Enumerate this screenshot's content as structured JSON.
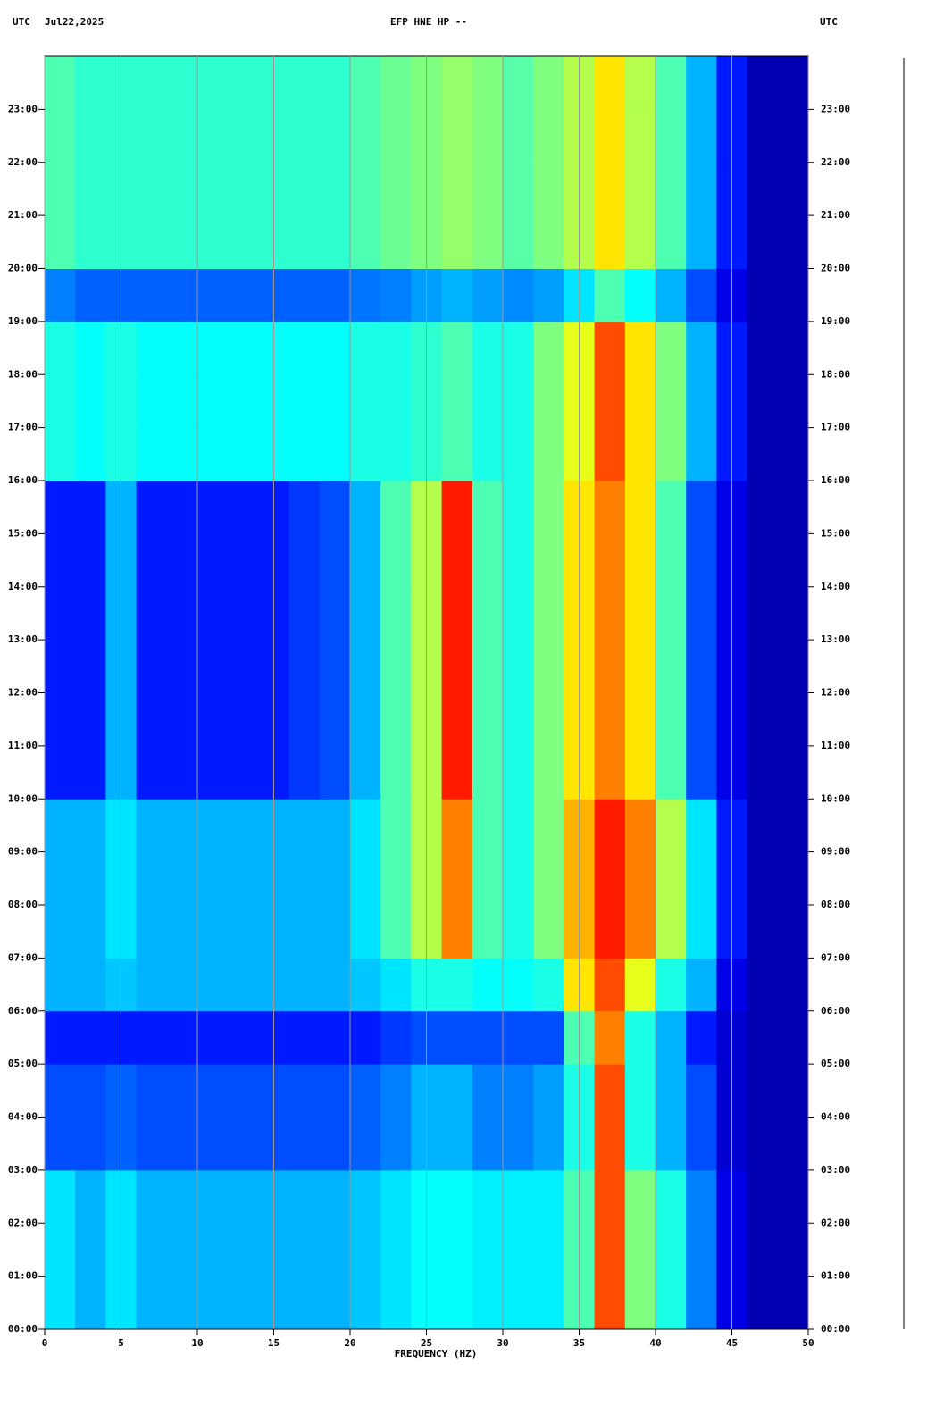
{
  "chart_data": {
    "type": "spectrogram",
    "title": "EFP HNE HP --",
    "left_label": "UTC",
    "date": "Jul22,2025",
    "right_label": "UTC",
    "x_label": "FREQUENCY (HZ)",
    "colormap": "jet",
    "xlim": [
      0,
      50
    ],
    "xticks": [
      0,
      5,
      10,
      15,
      20,
      25,
      30,
      35,
      40,
      45,
      50
    ],
    "grid": true,
    "ylim": [
      0,
      24
    ],
    "yticks": [
      {
        "value": 0,
        "label": "00:00"
      },
      {
        "value": 1,
        "label": "01:00"
      },
      {
        "value": 2,
        "label": "02:00"
      },
      {
        "value": 3,
        "label": "03:00"
      },
      {
        "value": 4,
        "label": "04:00"
      },
      {
        "value": 5,
        "label": "05:00"
      },
      {
        "value": 6,
        "label": "06:00"
      },
      {
        "value": 7,
        "label": "07:00"
      },
      {
        "value": 8,
        "label": "08:00"
      },
      {
        "value": 9,
        "label": "09:00"
      },
      {
        "value": 10,
        "label": "10:00"
      },
      {
        "value": 11,
        "label": "11:00"
      },
      {
        "value": 12,
        "label": "12:00"
      },
      {
        "value": 13,
        "label": "13:00"
      },
      {
        "value": 14,
        "label": "14:00"
      },
      {
        "value": 15,
        "label": "15:00"
      },
      {
        "value": 16,
        "label": "16:00"
      },
      {
        "value": 17,
        "label": "17:00"
      },
      {
        "value": 18,
        "label": "18:00"
      },
      {
        "value": 19,
        "label": "19:00"
      },
      {
        "value": 20,
        "label": "20:00"
      },
      {
        "value": 21,
        "label": "21:00"
      },
      {
        "value": 22,
        "label": "22:00"
      },
      {
        "value": 23,
        "label": "23:00"
      }
    ],
    "xbins": [
      0,
      2,
      4,
      6,
      8,
      10,
      12,
      14,
      16,
      18,
      20,
      22,
      24,
      26,
      28,
      30,
      32,
      34,
      36,
      38,
      40,
      42,
      44,
      46,
      48,
      50
    ],
    "ybins": [
      0,
      1,
      2,
      3,
      4,
      5,
      6,
      7,
      8,
      9,
      10,
      11,
      12,
      13,
      14,
      15,
      16,
      17,
      18,
      19,
      20,
      21,
      22,
      23,
      24
    ],
    "z": [
      [
        0.35,
        0.3,
        0.35,
        0.3,
        0.3,
        0.3,
        0.3,
        0.3,
        0.3,
        0.3,
        0.32,
        0.35,
        0.38,
        0.38,
        0.36,
        0.36,
        0.36,
        0.45,
        0.8,
        0.5,
        0.4,
        0.25,
        0.1,
        0.05,
        0.05
      ],
      [
        0.35,
        0.3,
        0.35,
        0.3,
        0.3,
        0.3,
        0.3,
        0.3,
        0.3,
        0.3,
        0.32,
        0.35,
        0.38,
        0.38,
        0.36,
        0.36,
        0.36,
        0.45,
        0.8,
        0.5,
        0.4,
        0.25,
        0.1,
        0.05,
        0.05
      ],
      [
        0.35,
        0.3,
        0.35,
        0.3,
        0.3,
        0.3,
        0.3,
        0.3,
        0.3,
        0.3,
        0.32,
        0.35,
        0.38,
        0.38,
        0.36,
        0.36,
        0.36,
        0.45,
        0.8,
        0.5,
        0.4,
        0.25,
        0.1,
        0.05,
        0.05
      ],
      [
        0.2,
        0.2,
        0.22,
        0.2,
        0.2,
        0.2,
        0.2,
        0.2,
        0.2,
        0.2,
        0.22,
        0.25,
        0.3,
        0.3,
        0.25,
        0.25,
        0.28,
        0.4,
        0.8,
        0.4,
        0.3,
        0.2,
        0.08,
        0.05,
        0.05
      ],
      [
        0.2,
        0.2,
        0.22,
        0.2,
        0.2,
        0.2,
        0.2,
        0.2,
        0.2,
        0.2,
        0.22,
        0.25,
        0.3,
        0.3,
        0.25,
        0.25,
        0.28,
        0.4,
        0.8,
        0.4,
        0.3,
        0.2,
        0.08,
        0.05,
        0.05
      ],
      [
        0.15,
        0.15,
        0.15,
        0.15,
        0.15,
        0.15,
        0.15,
        0.15,
        0.15,
        0.15,
        0.15,
        0.18,
        0.2,
        0.2,
        0.2,
        0.2,
        0.2,
        0.45,
        0.75,
        0.4,
        0.3,
        0.15,
        0.08,
        0.05,
        0.05
      ],
      [
        0.3,
        0.3,
        0.32,
        0.3,
        0.3,
        0.3,
        0.3,
        0.3,
        0.3,
        0.3,
        0.32,
        0.35,
        0.4,
        0.4,
        0.38,
        0.38,
        0.4,
        0.65,
        0.8,
        0.6,
        0.4,
        0.3,
        0.1,
        0.05,
        0.05
      ],
      [
        0.3,
        0.3,
        0.35,
        0.3,
        0.3,
        0.3,
        0.3,
        0.3,
        0.3,
        0.3,
        0.35,
        0.45,
        0.55,
        0.75,
        0.45,
        0.4,
        0.5,
        0.7,
        0.85,
        0.75,
        0.55,
        0.35,
        0.15,
        0.05,
        0.05
      ],
      [
        0.3,
        0.3,
        0.35,
        0.3,
        0.3,
        0.3,
        0.3,
        0.3,
        0.3,
        0.3,
        0.35,
        0.45,
        0.55,
        0.75,
        0.45,
        0.4,
        0.5,
        0.7,
        0.85,
        0.75,
        0.55,
        0.35,
        0.15,
        0.05,
        0.05
      ],
      [
        0.3,
        0.3,
        0.35,
        0.3,
        0.3,
        0.3,
        0.3,
        0.3,
        0.3,
        0.3,
        0.35,
        0.45,
        0.55,
        0.75,
        0.45,
        0.4,
        0.5,
        0.7,
        0.85,
        0.75,
        0.55,
        0.35,
        0.15,
        0.05,
        0.05
      ],
      [
        0.15,
        0.15,
        0.3,
        0.15,
        0.15,
        0.15,
        0.15,
        0.15,
        0.18,
        0.2,
        0.3,
        0.45,
        0.55,
        0.85,
        0.45,
        0.4,
        0.5,
        0.65,
        0.75,
        0.65,
        0.45,
        0.2,
        0.1,
        0.05,
        0.05
      ],
      [
        0.15,
        0.15,
        0.3,
        0.15,
        0.15,
        0.15,
        0.15,
        0.15,
        0.18,
        0.2,
        0.3,
        0.45,
        0.55,
        0.85,
        0.45,
        0.4,
        0.5,
        0.65,
        0.75,
        0.65,
        0.45,
        0.2,
        0.1,
        0.05,
        0.05
      ],
      [
        0.15,
        0.15,
        0.3,
        0.15,
        0.15,
        0.15,
        0.15,
        0.15,
        0.18,
        0.2,
        0.3,
        0.45,
        0.55,
        0.85,
        0.45,
        0.4,
        0.5,
        0.65,
        0.75,
        0.65,
        0.45,
        0.2,
        0.1,
        0.05,
        0.05
      ],
      [
        0.15,
        0.15,
        0.3,
        0.15,
        0.15,
        0.15,
        0.15,
        0.15,
        0.18,
        0.2,
        0.3,
        0.45,
        0.55,
        0.85,
        0.45,
        0.4,
        0.5,
        0.65,
        0.75,
        0.65,
        0.45,
        0.2,
        0.1,
        0.05,
        0.05
      ],
      [
        0.15,
        0.15,
        0.3,
        0.15,
        0.15,
        0.15,
        0.15,
        0.15,
        0.18,
        0.2,
        0.3,
        0.45,
        0.55,
        0.85,
        0.45,
        0.4,
        0.5,
        0.65,
        0.75,
        0.65,
        0.45,
        0.2,
        0.1,
        0.05,
        0.05
      ],
      [
        0.15,
        0.15,
        0.3,
        0.15,
        0.15,
        0.15,
        0.15,
        0.15,
        0.18,
        0.2,
        0.3,
        0.45,
        0.55,
        0.85,
        0.45,
        0.4,
        0.5,
        0.65,
        0.75,
        0.65,
        0.45,
        0.2,
        0.1,
        0.05,
        0.05
      ],
      [
        0.4,
        0.38,
        0.4,
        0.38,
        0.38,
        0.38,
        0.38,
        0.38,
        0.38,
        0.38,
        0.4,
        0.4,
        0.42,
        0.45,
        0.4,
        0.4,
        0.5,
        0.6,
        0.8,
        0.65,
        0.5,
        0.3,
        0.15,
        0.05,
        0.05
      ],
      [
        0.4,
        0.38,
        0.4,
        0.38,
        0.38,
        0.38,
        0.38,
        0.38,
        0.38,
        0.38,
        0.4,
        0.4,
        0.42,
        0.45,
        0.4,
        0.4,
        0.5,
        0.6,
        0.8,
        0.65,
        0.5,
        0.3,
        0.15,
        0.05,
        0.05
      ],
      [
        0.4,
        0.38,
        0.4,
        0.38,
        0.38,
        0.38,
        0.38,
        0.38,
        0.38,
        0.38,
        0.4,
        0.4,
        0.42,
        0.45,
        0.4,
        0.4,
        0.5,
        0.6,
        0.8,
        0.65,
        0.5,
        0.3,
        0.15,
        0.05,
        0.05
      ],
      [
        0.25,
        0.22,
        0.22,
        0.22,
        0.22,
        0.22,
        0.22,
        0.22,
        0.22,
        0.22,
        0.24,
        0.25,
        0.28,
        0.3,
        0.28,
        0.26,
        0.28,
        0.35,
        0.45,
        0.38,
        0.3,
        0.2,
        0.1,
        0.05,
        0.05
      ],
      [
        0.45,
        0.42,
        0.42,
        0.42,
        0.42,
        0.42,
        0.42,
        0.42,
        0.42,
        0.42,
        0.45,
        0.48,
        0.5,
        0.52,
        0.5,
        0.46,
        0.5,
        0.55,
        0.65,
        0.55,
        0.45,
        0.3,
        0.15,
        0.05,
        0.05
      ],
      [
        0.45,
        0.42,
        0.42,
        0.42,
        0.42,
        0.42,
        0.42,
        0.42,
        0.42,
        0.42,
        0.45,
        0.48,
        0.5,
        0.52,
        0.5,
        0.46,
        0.5,
        0.55,
        0.65,
        0.55,
        0.45,
        0.3,
        0.15,
        0.05,
        0.05
      ],
      [
        0.45,
        0.42,
        0.42,
        0.42,
        0.42,
        0.42,
        0.42,
        0.42,
        0.42,
        0.42,
        0.45,
        0.48,
        0.5,
        0.52,
        0.5,
        0.46,
        0.5,
        0.55,
        0.65,
        0.55,
        0.45,
        0.3,
        0.15,
        0.05,
        0.05
      ],
      [
        0.45,
        0.42,
        0.42,
        0.42,
        0.42,
        0.42,
        0.42,
        0.42,
        0.42,
        0.42,
        0.45,
        0.48,
        0.5,
        0.52,
        0.5,
        0.46,
        0.5,
        0.55,
        0.65,
        0.55,
        0.45,
        0.3,
        0.15,
        0.05,
        0.05
      ]
    ]
  }
}
